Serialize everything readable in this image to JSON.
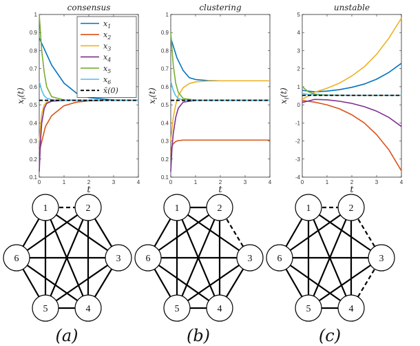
{
  "chart_data": [
    {
      "type": "line",
      "title": "consensus",
      "xlabel": "t",
      "ylabel": "x_i(t)",
      "xlim": [
        0,
        4
      ],
      "ylim": [
        0.1,
        1
      ],
      "xticks": [
        "0",
        "1",
        "2",
        "3",
        "4"
      ],
      "yticks": [
        "0.1",
        "0.2",
        "0.3",
        "0.4",
        "0.5",
        "0.6",
        "0.7",
        "0.8",
        "0.9",
        "1"
      ],
      "legend": {
        "placement": "top-right",
        "entries": [
          "x_1",
          "x_2",
          "x_3",
          "x_4",
          "x_5",
          "x_6",
          "x̄(0)"
        ]
      },
      "reference_line": {
        "name": "x̄(0)",
        "y": 0.525
      },
      "series": [
        {
          "name": "x_1",
          "x": [
            0,
            0.5,
            1,
            1.5,
            2,
            3,
            4
          ],
          "y": [
            0.87,
            0.72,
            0.62,
            0.565,
            0.54,
            0.527,
            0.525
          ]
        },
        {
          "name": "x_2",
          "x": [
            0,
            0.25,
            0.5,
            1,
            1.5,
            2,
            3,
            4
          ],
          "y": [
            0.24,
            0.38,
            0.44,
            0.495,
            0.515,
            0.522,
            0.525,
            0.525
          ]
        },
        {
          "name": "x_3",
          "x": [
            0,
            0.1,
            0.2,
            0.3,
            0.5,
            1,
            2,
            4
          ],
          "y": [
            0.3,
            0.45,
            0.5,
            0.515,
            0.522,
            0.525,
            0.525,
            0.525
          ]
        },
        {
          "name": "x_4",
          "x": [
            0,
            0.05,
            0.1,
            0.2,
            0.3,
            0.5,
            1,
            2,
            4
          ],
          "y": [
            0.13,
            0.3,
            0.4,
            0.48,
            0.508,
            0.52,
            0.525,
            0.525,
            0.525
          ]
        },
        {
          "name": "x_5",
          "x": [
            0,
            0.1,
            0.2,
            0.3,
            0.5,
            1,
            2,
            4
          ],
          "y": [
            1.0,
            0.8,
            0.68,
            0.6,
            0.545,
            0.527,
            0.525,
            0.525
          ]
        },
        {
          "name": "x_6",
          "x": [
            0,
            0.1,
            0.2,
            0.3,
            0.5,
            1,
            2,
            4
          ],
          "y": [
            0.63,
            0.58,
            0.55,
            0.537,
            0.528,
            0.525,
            0.525,
            0.525
          ]
        }
      ]
    },
    {
      "type": "line",
      "title": "clustering",
      "xlabel": "t",
      "ylabel": "x_i(t)",
      "xlim": [
        0,
        4
      ],
      "ylim": [
        0.1,
        1
      ],
      "xticks": [
        "0",
        "1",
        "2",
        "3",
        "4"
      ],
      "yticks": [
        "0.1",
        "0.2",
        "0.3",
        "0.4",
        "0.5",
        "0.6",
        "0.7",
        "0.8",
        "0.9",
        "1"
      ],
      "reference_line": {
        "name": "x̄(0)",
        "y": 0.525
      },
      "series": [
        {
          "name": "x_1",
          "x": [
            0,
            0.25,
            0.5,
            0.75,
            1,
            1.5,
            2,
            4
          ],
          "y": [
            0.87,
            0.76,
            0.69,
            0.65,
            0.64,
            0.634,
            0.633,
            0.633
          ]
        },
        {
          "name": "x_2",
          "x": [
            0,
            0.05,
            0.1,
            0.2,
            0.3,
            0.5,
            1,
            2,
            4
          ],
          "y": [
            0.23,
            0.27,
            0.285,
            0.297,
            0.302,
            0.305,
            0.305,
            0.305,
            0.305
          ]
        },
        {
          "name": "x_3",
          "x": [
            0,
            0.1,
            0.2,
            0.3,
            0.5,
            0.75,
            1,
            1.5,
            2,
            4
          ],
          "y": [
            0.3,
            0.43,
            0.5,
            0.55,
            0.595,
            0.618,
            0.627,
            0.632,
            0.633,
            0.633
          ]
        },
        {
          "name": "x_4",
          "x": [
            0,
            0.05,
            0.1,
            0.2,
            0.3,
            0.5,
            1,
            2,
            4
          ],
          "y": [
            0.13,
            0.26,
            0.34,
            0.43,
            0.48,
            0.515,
            0.525,
            0.525,
            0.525
          ]
        },
        {
          "name": "x_5",
          "x": [
            0,
            0.1,
            0.2,
            0.3,
            0.5,
            1,
            2,
            4
          ],
          "y": [
            0.9,
            0.72,
            0.62,
            0.57,
            0.535,
            0.526,
            0.525,
            0.525
          ]
        },
        {
          "name": "x_6",
          "x": [
            0,
            0.1,
            0.2,
            0.3,
            0.5,
            1,
            2,
            4
          ],
          "y": [
            0.63,
            0.58,
            0.55,
            0.536,
            0.527,
            0.525,
            0.525,
            0.525
          ]
        }
      ]
    },
    {
      "type": "line",
      "title": "unstable",
      "xlabel": "t",
      "ylabel": "x_i(t)",
      "xlim": [
        0,
        4
      ],
      "ylim": [
        -4,
        5
      ],
      "xticks": [
        "0",
        "1",
        "2",
        "3",
        "4"
      ],
      "yticks": [
        "-4",
        "-3",
        "-2",
        "-1",
        "0",
        "1",
        "2",
        "3",
        "4",
        "5"
      ],
      "reference_line": {
        "name": "x̄(0)",
        "y": 0.525
      },
      "series": [
        {
          "name": "x_1",
          "x": [
            0,
            0.5,
            1,
            1.5,
            2,
            2.5,
            3,
            3.5,
            4
          ],
          "y": [
            0.8,
            0.72,
            0.76,
            0.84,
            0.97,
            1.15,
            1.42,
            1.8,
            2.3
          ]
        },
        {
          "name": "x_2",
          "x": [
            0,
            0.5,
            1,
            1.5,
            2,
            2.5,
            3,
            3.5,
            4
          ],
          "y": [
            0.24,
            0.15,
            0.0,
            -0.22,
            -0.55,
            -1.0,
            -1.65,
            -2.5,
            -3.65
          ]
        },
        {
          "name": "x_3",
          "x": [
            0,
            0.5,
            1,
            1.5,
            2,
            2.5,
            3,
            3.5,
            4
          ],
          "y": [
            0.3,
            0.7,
            0.92,
            1.2,
            1.6,
            2.1,
            2.8,
            3.7,
            4.8
          ]
        },
        {
          "name": "x_4",
          "x": [
            0,
            0.5,
            1,
            1.5,
            2,
            2.5,
            3,
            3.5,
            4
          ],
          "y": [
            0.13,
            0.3,
            0.28,
            0.2,
            0.08,
            -0.1,
            -0.35,
            -0.7,
            -1.2
          ]
        },
        {
          "name": "x_5",
          "x": [
            0,
            0.25,
            0.5,
            0.75,
            1,
            1.5,
            2,
            4
          ],
          "y": [
            1.0,
            0.72,
            0.6,
            0.56,
            0.54,
            0.53,
            0.525,
            0.525
          ]
        },
        {
          "name": "x_6",
          "x": [
            0,
            0.25,
            0.5,
            0.75,
            1,
            1.5,
            2,
            4
          ],
          "y": [
            0.63,
            0.57,
            0.545,
            0.535,
            0.53,
            0.527,
            0.525,
            0.525
          ]
        }
      ]
    }
  ],
  "colors": {
    "x_1": "#0072BD",
    "x_2": "#D95319",
    "x_3": "#EDB120",
    "x_4": "#7E2F8E",
    "x_5": "#77AC30",
    "x_6": "#4DBEEE",
    "reference": "#000000"
  },
  "graphs": [
    {
      "caption": "(a)",
      "nodes": [
        "1",
        "2",
        "3",
        "4",
        "5",
        "6"
      ],
      "solid_edges": [
        [
          1,
          3
        ],
        [
          1,
          4
        ],
        [
          1,
          5
        ],
        [
          1,
          6
        ],
        [
          2,
          3
        ],
        [
          2,
          4
        ],
        [
          2,
          5
        ],
        [
          2,
          6
        ],
        [
          3,
          4
        ],
        [
          3,
          5
        ],
        [
          3,
          6
        ],
        [
          4,
          5
        ],
        [
          4,
          6
        ],
        [
          5,
          6
        ]
      ],
      "dashed_edges": [
        [
          1,
          2
        ]
      ]
    },
    {
      "caption": "(b)",
      "nodes": [
        "1",
        "2",
        "3",
        "4",
        "5",
        "6"
      ],
      "solid_edges": [
        [
          1,
          2
        ],
        [
          1,
          3
        ],
        [
          1,
          4
        ],
        [
          1,
          5
        ],
        [
          1,
          6
        ],
        [
          2,
          4
        ],
        [
          2,
          5
        ],
        [
          2,
          6
        ],
        [
          3,
          4
        ],
        [
          3,
          5
        ],
        [
          3,
          6
        ],
        [
          4,
          5
        ],
        [
          4,
          6
        ],
        [
          5,
          6
        ]
      ],
      "dashed_edges": [
        [
          2,
          3
        ]
      ]
    },
    {
      "caption": "(c)",
      "nodes": [
        "1",
        "2",
        "3",
        "4",
        "5",
        "6"
      ],
      "solid_edges": [
        [
          1,
          3
        ],
        [
          1,
          4
        ],
        [
          1,
          5
        ],
        [
          1,
          6
        ],
        [
          2,
          4
        ],
        [
          2,
          5
        ],
        [
          2,
          6
        ],
        [
          3,
          5
        ],
        [
          3,
          6
        ],
        [
          4,
          5
        ],
        [
          4,
          6
        ],
        [
          5,
          6
        ]
      ],
      "dashed_edges": [
        [
          1,
          2
        ],
        [
          2,
          3
        ],
        [
          3,
          4
        ]
      ]
    }
  ]
}
